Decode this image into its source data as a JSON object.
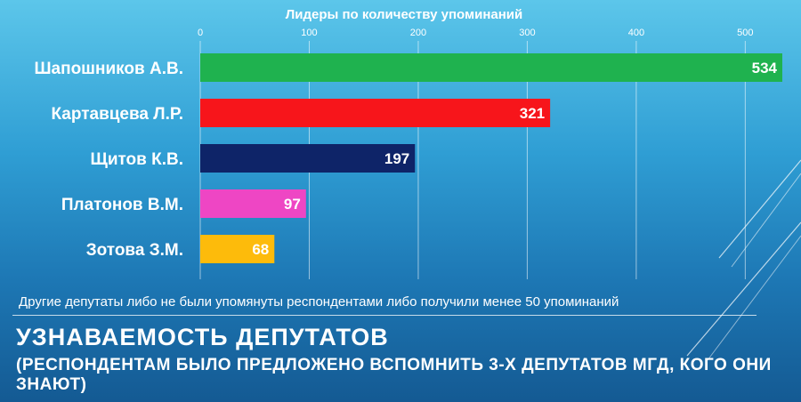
{
  "chart_data": {
    "type": "bar",
    "orientation": "horizontal",
    "title": "Лидеры по количеству упоминаний",
    "categories": [
      "Шапошников А.В.",
      "Картавцева Л.Р.",
      "Щитов К.В.",
      "Платонов В.М.",
      "Зотова З.М."
    ],
    "values": [
      534,
      321,
      197,
      97,
      68
    ],
    "bar_colors": [
      "#1fb24f",
      "#f7151b",
      "#0e2468",
      "#ee46c4",
      "#fdbb0b"
    ],
    "xlim": [
      0,
      534
    ],
    "xticks": [
      0,
      100,
      200,
      300,
      400,
      500
    ],
    "axis_position": "top",
    "grid": true,
    "legend": "none"
  },
  "footnote": "Другие депутаты либо не были упомянуты респондентами либо получили менее 50 упоминаний",
  "slide": {
    "title": "УЗНАВАЕМОСТЬ ДЕПУТАТОВ",
    "subtitle": "(РЕСПОНДЕНТАМ БЫЛО ПРЕДЛОЖЕНО ВСПОМНИТЬ 3-Х ДЕПУТАТОВ МГД, КОГО ОНИ ЗНАЮТ)"
  },
  "colors": {
    "background_top": "#5cc6ea",
    "background_bottom": "#145a93",
    "text": "#ffffff"
  }
}
